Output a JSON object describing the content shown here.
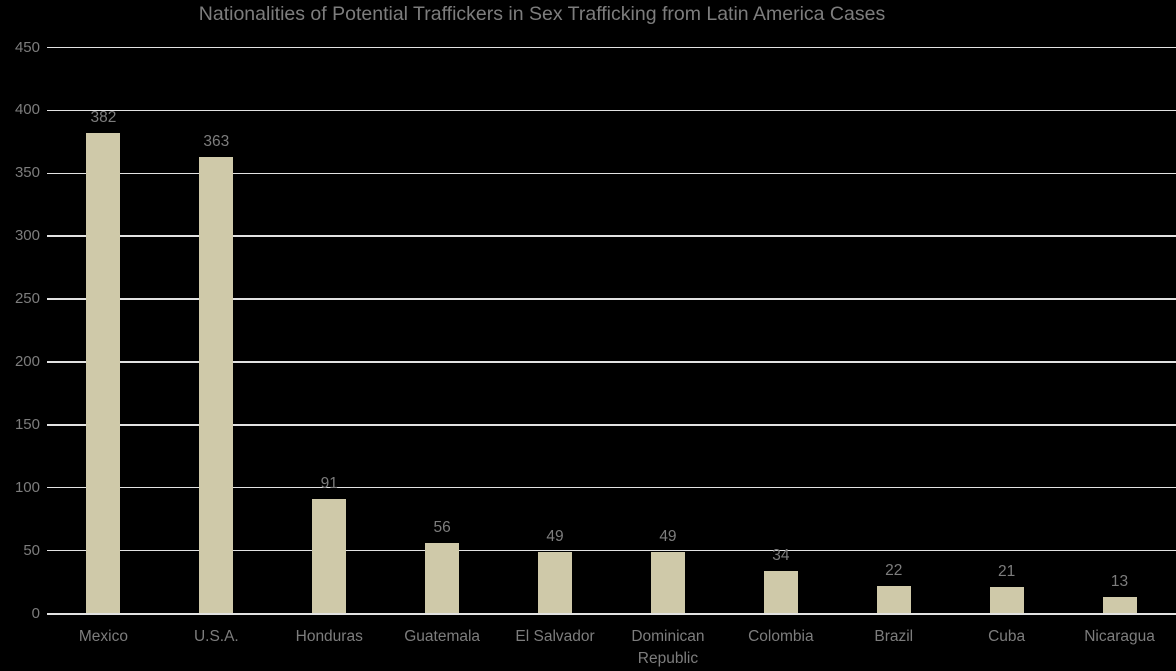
{
  "chart_data": {
    "type": "bar",
    "title": "Nationalities of Potential Traffickers in Sex Trafficking from Latin America Cases",
    "categories": [
      "Mexico",
      "U.S.A.",
      "Honduras",
      "Guatemala",
      "El Salvador",
      "Dominican Republic",
      "Colombia",
      "Brazil",
      "Cuba",
      "Nicaragua"
    ],
    "values": [
      382,
      363,
      91,
      56,
      49,
      49,
      34,
      22,
      21,
      13
    ],
    "data_labels": [
      "382",
      "363",
      "91",
      "56",
      "49",
      "49",
      "34",
      "22",
      "21",
      "13"
    ],
    "xlabel": "",
    "ylabel": "",
    "ylim": [
      0,
      450
    ],
    "ytick_step": 50,
    "ytick_labels": [
      "0",
      "50",
      "100",
      "150",
      "200",
      "250",
      "300",
      "350",
      "400",
      "450"
    ],
    "grid": true,
    "legend": false,
    "colors": {
      "background": "#000000",
      "bar": "#cfc9a9",
      "gridline": "#e2e2e2",
      "axis_line": "#e2e2e2",
      "text": "#7d7d7d",
      "title": "#7d7d7d"
    }
  }
}
